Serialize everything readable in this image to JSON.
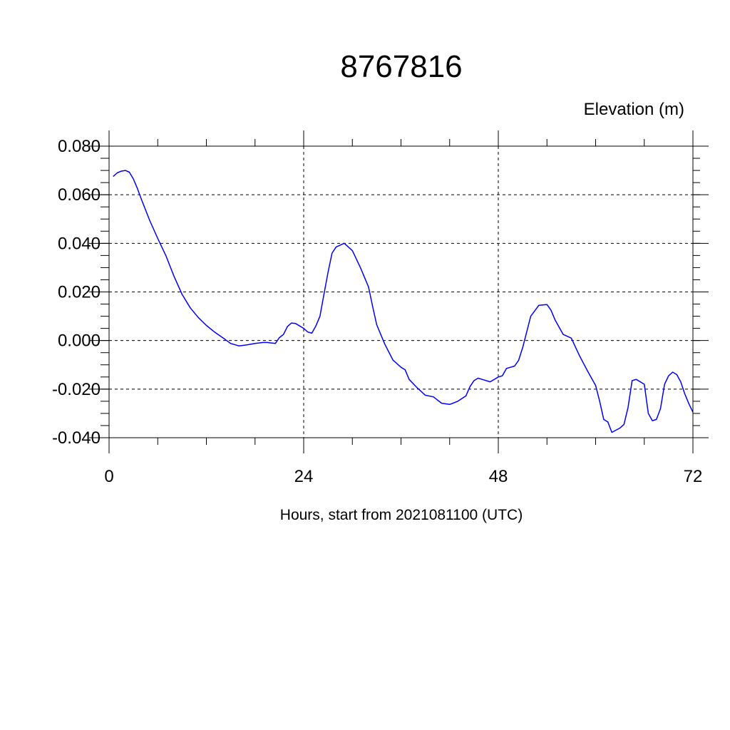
{
  "chart_data": {
    "type": "line",
    "title": "8767816",
    "unit_label": "Elevation (m)",
    "xlabel": "Hours, start from 2021081100 (UTC)",
    "xlim": [
      0,
      72
    ],
    "ylim": [
      -0.04,
      0.08
    ],
    "x_ticks": [
      0,
      24,
      48,
      72
    ],
    "x_tick_labels": [
      "0",
      "24",
      "48",
      "72"
    ],
    "y_ticks": [
      0.08,
      0.06,
      0.04,
      0.02,
      0.0,
      -0.02,
      -0.04
    ],
    "y_tick_labels": [
      "0.080",
      "0.060",
      "0.040",
      "0.020",
      "0.000",
      "-0.020",
      "-0.040"
    ],
    "grid": true,
    "series": [
      {
        "color": "#0000ff",
        "x": [
          0.5,
          1.0,
          1.5,
          2.0,
          2.5,
          3.0,
          3.5,
          4.0,
          5.0,
          6.0,
          7.0,
          8.0,
          9.0,
          10.0,
          11.0,
          12.0,
          13.0,
          14.0,
          15.0,
          16.0,
          17.0,
          18.0,
          19.0,
          19.5,
          20.0,
          20.5,
          21.0,
          21.5,
          22.0,
          22.5,
          23.0,
          23.5,
          24.0,
          24.5,
          25.0,
          25.5,
          26.0,
          26.5,
          27.0,
          27.5,
          28.0,
          29.0,
          30.0,
          31.0,
          32.0,
          32.5,
          33.0,
          34.0,
          35.0,
          36.0,
          36.5,
          37.0,
          38.0,
          39.0,
          40.0,
          41.0,
          42.0,
          43.0,
          44.0,
          44.5,
          45.0,
          45.5,
          46.0,
          47.0,
          48.0,
          48.5,
          49.0,
          49.5,
          50.0,
          50.5,
          51.0,
          52.0,
          53.0,
          54.0,
          54.5,
          55.0,
          56.0,
          57.0,
          58.0,
          59.0,
          60.0,
          60.5,
          61.0,
          61.5,
          62.0,
          63.0,
          63.5,
          64.0,
          64.5,
          65.0,
          66.0,
          66.5,
          67.0,
          67.5,
          68.0,
          68.5,
          69.0,
          69.5,
          70.0,
          70.5,
          71.0,
          71.5,
          72.0
        ],
        "y": [
          0.0675,
          0.069,
          0.0697,
          0.07,
          0.0693,
          0.0665,
          0.0625,
          0.058,
          0.0495,
          0.042,
          0.035,
          0.0265,
          0.019,
          0.0135,
          0.0095,
          0.0062,
          0.0035,
          0.0012,
          -0.0012,
          -0.0022,
          -0.0018,
          -0.0012,
          -0.0008,
          -0.0008,
          -0.001,
          -0.0012,
          0.0012,
          0.0025,
          0.0058,
          0.0072,
          0.007,
          0.006,
          0.005,
          0.0035,
          0.003,
          0.006,
          0.01,
          0.019,
          0.028,
          0.036,
          0.0385,
          0.04,
          0.037,
          0.03,
          0.022,
          0.014,
          0.0065,
          -0.0015,
          -0.008,
          -0.011,
          -0.012,
          -0.016,
          -0.0195,
          -0.0225,
          -0.0232,
          -0.0258,
          -0.0263,
          -0.025,
          -0.0228,
          -0.019,
          -0.0165,
          -0.0155,
          -0.016,
          -0.017,
          -0.015,
          -0.0145,
          -0.0115,
          -0.011,
          -0.0105,
          -0.0082,
          -0.003,
          0.01,
          0.0145,
          0.0148,
          0.0125,
          0.0085,
          0.0025,
          0.001,
          -0.0062,
          -0.0125,
          -0.0185,
          -0.025,
          -0.0325,
          -0.0335,
          -0.0378,
          -0.036,
          -0.0345,
          -0.0275,
          -0.0165,
          -0.016,
          -0.018,
          -0.03,
          -0.033,
          -0.0325,
          -0.028,
          -0.018,
          -0.0145,
          -0.013,
          -0.014,
          -0.017,
          -0.022,
          -0.026,
          -0.0295
        ]
      }
    ]
  }
}
